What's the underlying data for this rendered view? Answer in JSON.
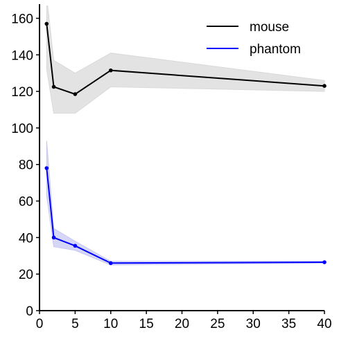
{
  "chart_data": {
    "type": "line",
    "title": "",
    "xlabel": "",
    "ylabel": "",
    "xlim": [
      0,
      40
    ],
    "ylim": [
      0,
      167
    ],
    "x_ticks": [
      0,
      5,
      10,
      15,
      20,
      25,
      30,
      35,
      40
    ],
    "y_ticks": [
      0,
      20,
      40,
      60,
      80,
      100,
      120,
      140,
      160
    ],
    "grid": false,
    "legend_position": "top-right",
    "series": [
      {
        "name": "mouse",
        "color": "#000000",
        "band_color": "#d9d9d9",
        "x": [
          1,
          2,
          5,
          10,
          40
        ],
        "y": [
          157,
          122.5,
          118.5,
          131.5,
          123
        ],
        "lower": [
          132,
          108,
          108,
          122.5,
          120
        ],
        "upper": [
          172,
          137,
          130,
          141,
          126
        ]
      },
      {
        "name": "phantom",
        "color": "#0000ff",
        "band_color": "#c8c8f4",
        "x": [
          1,
          2,
          5,
          10,
          40
        ],
        "y": [
          78,
          40,
          35.5,
          26,
          26.5
        ],
        "lower": [
          63,
          35,
          33,
          25,
          26
        ],
        "upper": [
          93,
          45,
          38,
          27,
          27
        ]
      }
    ]
  }
}
